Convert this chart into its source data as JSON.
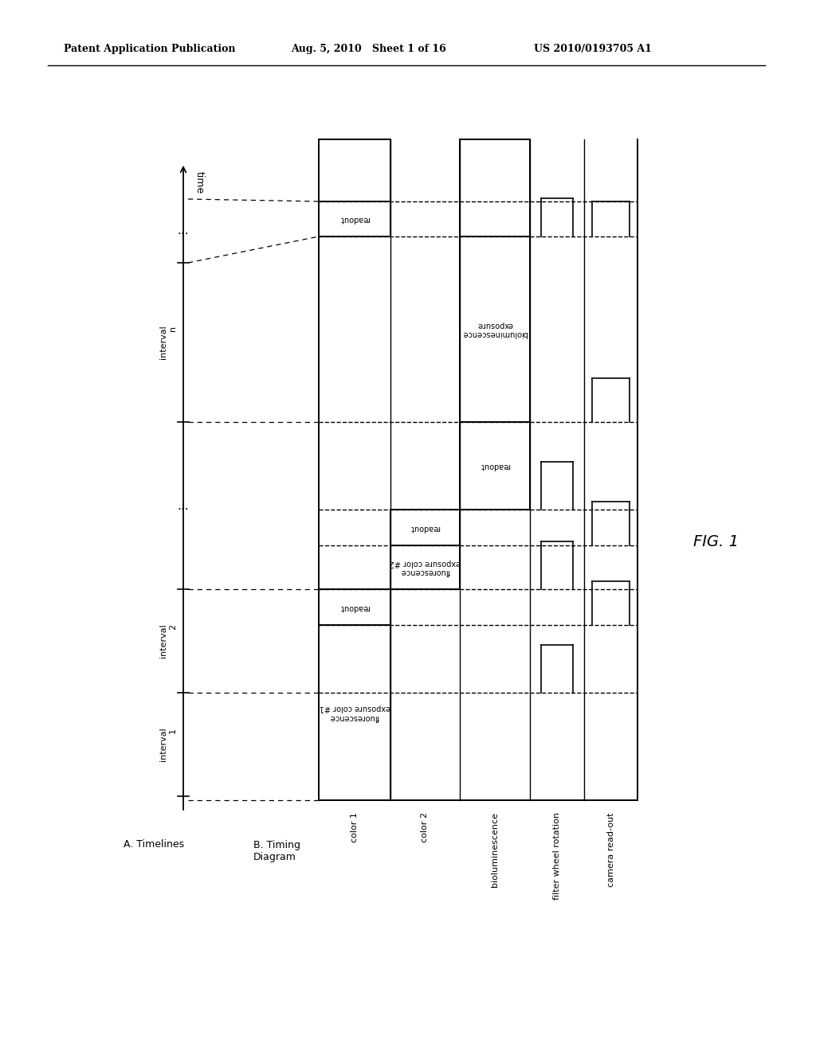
{
  "header_left": "Patent Application Publication",
  "header_mid": "Aug. 5, 2010   Sheet 1 of 16",
  "header_right": "US 2010/0193705 A1",
  "fig_label": "FIG. 1",
  "section_a_label": "A. Timelines",
  "section_b_label": "B. Timing\nDiagram",
  "background_color": "#ffffff",
  "line_color": "#000000",
  "channel_labels": [
    "color 1",
    "color 2",
    "bioluminescence",
    "filter wheel rotation",
    "camera read-out"
  ],
  "interval_labels": [
    "interval\n1",
    "interval\n2",
    "interval\nn"
  ],
  "box_text_fluo1": "fluorescence\nexposure color #1",
  "box_text_readout1": "readout",
  "box_text_fluo2": "fluorescence\nexposure color #2",
  "box_text_readout2": "readout",
  "box_text_bio": "bioluminescence\nexposure",
  "box_text_readoutn": "readout",
  "box_text_readout_top": "readout"
}
